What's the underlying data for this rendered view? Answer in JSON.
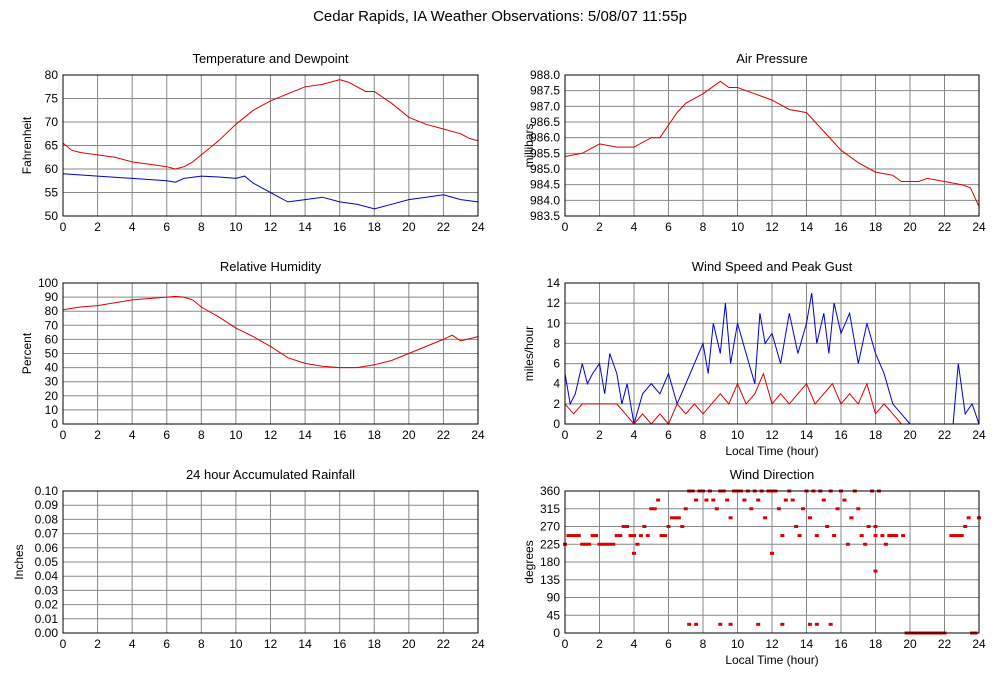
{
  "page": {
    "title": "Cedar Rapids, IA Weather Observations: 5/08/07 11:55p"
  },
  "colors": {
    "red": "#dd0000",
    "blue": "#0000cc",
    "grid": "#888888"
  },
  "chart_data": [
    {
      "id": "temp",
      "type": "line",
      "title": "Temperature and Dewpoint",
      "xlabel": "",
      "ylabel": "Fahrenheit",
      "xlim": [
        0,
        24
      ],
      "ylim": [
        50,
        80
      ],
      "xticks": [
        0,
        2,
        4,
        6,
        8,
        10,
        12,
        14,
        16,
        18,
        20,
        22,
        24
      ],
      "yticks": [
        50,
        55,
        60,
        65,
        70,
        75,
        80
      ],
      "grid": true,
      "series": [
        {
          "color": "#dd0000",
          "x": [
            0,
            0.5,
            1,
            2,
            3,
            4,
            5,
            6,
            6.5,
            7,
            7.5,
            8,
            9,
            10,
            11,
            12,
            13,
            14,
            15,
            16,
            16.5,
            17,
            17.5,
            18,
            19,
            20,
            21,
            22,
            23,
            23.5,
            24
          ],
          "y": [
            65.5,
            64,
            63.5,
            63,
            62.5,
            61.5,
            61,
            60.5,
            60,
            60.5,
            61.5,
            63,
            66,
            69.5,
            72.5,
            74.5,
            76,
            77.5,
            78,
            79,
            78.5,
            77.5,
            76.5,
            76.5,
            74,
            71,
            69.5,
            68.5,
            67.5,
            66.5,
            66
          ]
        },
        {
          "color": "#0000cc",
          "x": [
            0,
            2,
            4,
            6,
            6.5,
            7,
            8,
            9,
            10,
            10.5,
            11,
            11.5,
            12,
            12.5,
            13,
            14,
            15,
            16,
            17,
            18,
            19,
            20,
            21,
            22,
            23,
            24
          ],
          "y": [
            59,
            58.5,
            58,
            57.5,
            57.2,
            58,
            58.5,
            58.3,
            58,
            58.5,
            57,
            56,
            55,
            54,
            53,
            53.5,
            54,
            53,
            52.5,
            51.5,
            52.5,
            53.5,
            54,
            54.5,
            53.5,
            53
          ]
        }
      ]
    },
    {
      "id": "pressure",
      "type": "line",
      "title": "Air Pressure",
      "xlabel": "",
      "ylabel": "millibars",
      "xlim": [
        0,
        24
      ],
      "ylim": [
        983.5,
        988.0
      ],
      "xticks": [
        0,
        2,
        4,
        6,
        8,
        10,
        12,
        14,
        16,
        18,
        20,
        22,
        24
      ],
      "yticks": [
        "983.5",
        "984.0",
        "984.5",
        "985.0",
        "985.5",
        "986.0",
        "986.5",
        "987.0",
        "987.5",
        "988.0"
      ],
      "grid": true,
      "series": [
        {
          "color": "#dd0000",
          "x": [
            0,
            1,
            2,
            3,
            4,
            5,
            5.5,
            6,
            6.5,
            7,
            8,
            9,
            9.5,
            10,
            10.5,
            11,
            12,
            13,
            14,
            14.5,
            15,
            16,
            17,
            18,
            19,
            19.5,
            20,
            20.5,
            21,
            22,
            23,
            23.5,
            24
          ],
          "y": [
            985.4,
            985.5,
            985.8,
            985.7,
            985.7,
            986.0,
            986.0,
            986.4,
            986.8,
            987.1,
            987.4,
            987.8,
            987.6,
            987.6,
            987.5,
            987.4,
            987.2,
            986.9,
            986.8,
            986.5,
            986.2,
            985.6,
            985.2,
            984.9,
            984.8,
            984.6,
            984.6,
            984.6,
            984.7,
            984.6,
            984.5,
            984.4,
            983.8
          ]
        }
      ]
    },
    {
      "id": "humidity",
      "type": "line",
      "title": "Relative Humidity",
      "xlabel": "",
      "ylabel": "Percent",
      "xlim": [
        0,
        24
      ],
      "ylim": [
        0,
        100
      ],
      "xticks": [
        0,
        2,
        4,
        6,
        8,
        10,
        12,
        14,
        16,
        18,
        20,
        22,
        24
      ],
      "yticks": [
        0,
        10,
        20,
        30,
        40,
        50,
        60,
        70,
        80,
        90,
        100
      ],
      "grid": true,
      "series": [
        {
          "color": "#dd0000",
          "x": [
            0,
            1,
            2,
            3,
            4,
            5,
            6,
            6.5,
            7,
            7.5,
            8,
            9,
            10,
            11,
            12,
            13,
            14,
            15,
            16,
            17,
            18,
            19,
            20,
            21,
            22,
            22.5,
            23,
            24
          ],
          "y": [
            81,
            83,
            84,
            86,
            88,
            89,
            90,
            90.5,
            90,
            88,
            83,
            76,
            68,
            62,
            55,
            47,
            43,
            41,
            40,
            40,
            42,
            45,
            50,
            55,
            60,
            63,
            59,
            62
          ]
        }
      ]
    },
    {
      "id": "wind",
      "type": "line",
      "title": "Wind Speed and Peak Gust",
      "xlabel": "Local Time (hour)",
      "ylabel": "miles/hour",
      "xlim": [
        0,
        24
      ],
      "ylim": [
        0,
        14
      ],
      "xticks": [
        0,
        2,
        4,
        6,
        8,
        10,
        12,
        14,
        16,
        18,
        20,
        22,
        24
      ],
      "yticks": [
        0,
        2,
        4,
        6,
        8,
        10,
        12,
        14
      ],
      "grid": true,
      "series": [
        {
          "color": "#0000cc",
          "x": [
            0,
            0.3,
            0.6,
            1,
            1.3,
            1.6,
            2,
            2.3,
            2.6,
            3,
            3.3,
            3.6,
            4,
            4.5,
            5,
            5.5,
            6,
            6.5,
            7,
            7.5,
            8,
            8.3,
            8.6,
            9,
            9.3,
            9.6,
            10,
            10.5,
            11,
            11.3,
            11.6,
            12,
            12.5,
            13,
            13.5,
            14,
            14.3,
            14.6,
            15,
            15.3,
            15.6,
            16,
            16.5,
            17,
            17.5,
            18,
            18.5,
            19,
            19.5,
            20,
            20.5,
            21,
            22,
            22.5,
            22.8,
            23.2,
            23.6,
            24
          ],
          "y": [
            5,
            2,
            3,
            6,
            4,
            5,
            6,
            3,
            7,
            5,
            2,
            4,
            0,
            3,
            4,
            3,
            5,
            2,
            4,
            6,
            8,
            5,
            10,
            7,
            12,
            6,
            10,
            7,
            4,
            11,
            8,
            9,
            6,
            11,
            7,
            10,
            13,
            8,
            11,
            7,
            12,
            9,
            11,
            6,
            10,
            7,
            5,
            2,
            1,
            0,
            0,
            0,
            0,
            0,
            6,
            1,
            2,
            0
          ]
        },
        {
          "color": "#dd0000",
          "x": [
            0,
            0.5,
            1,
            2,
            3,
            3.5,
            4,
            4.5,
            5,
            5.5,
            6,
            6.5,
            7,
            7.5,
            8,
            8.5,
            9,
            9.5,
            10,
            10.5,
            11,
            11.5,
            12,
            12.5,
            13,
            13.5,
            14,
            14.5,
            15,
            15.5,
            16,
            16.5,
            17,
            17.5,
            18,
            18.5,
            19,
            19.5,
            20,
            24
          ],
          "y": [
            2,
            1,
            2,
            2,
            2,
            1,
            0,
            1,
            0,
            1,
            0,
            2,
            1,
            2,
            1,
            2,
            3,
            2,
            4,
            2,
            3,
            5,
            2,
            3,
            2,
            3,
            4,
            2,
            3,
            4,
            2,
            3,
            2,
            4,
            1,
            2,
            1,
            0,
            0,
            0
          ]
        }
      ]
    },
    {
      "id": "rain",
      "type": "line",
      "title": "24 hour Accumulated Rainfall",
      "xlabel": "",
      "ylabel": "Inches",
      "xlim": [
        0,
        24
      ],
      "ylim": [
        0,
        0.1
      ],
      "xticks": [
        0,
        2,
        4,
        6,
        8,
        10,
        12,
        14,
        16,
        18,
        20,
        22,
        24
      ],
      "yticks": [
        "0.00",
        "0.01",
        "0.02",
        "0.03",
        "0.04",
        "0.05",
        "0.06",
        "0.07",
        "0.08",
        "0.09",
        "0.10"
      ],
      "grid": true,
      "series": [
        {
          "color": "#dd0000",
          "x": [
            0,
            24
          ],
          "y": [
            0,
            0
          ]
        }
      ]
    },
    {
      "id": "direction",
      "type": "scatter",
      "title": "Wind Direction",
      "xlabel": "Local Time (hour)",
      "ylabel": "degrees",
      "xlim": [
        0,
        24
      ],
      "ylim": [
        0,
        360
      ],
      "xticks": [
        0,
        2,
        4,
        6,
        8,
        10,
        12,
        14,
        16,
        18,
        20,
        22,
        24
      ],
      "yticks": [
        0,
        45,
        90,
        135,
        180,
        225,
        270,
        315,
        360
      ],
      "grid": true,
      "series": [
        {
          "color": "#dd0000",
          "x": [
            0,
            0.2,
            0.4,
            0.6,
            0.8,
            1.0,
            1.2,
            1.4,
            1.6,
            1.8,
            2.0,
            2.2,
            2.4,
            2.6,
            2.8,
            3.0,
            3.2,
            3.4,
            3.6,
            3.8,
            4.0,
            4.2,
            4.4,
            4.6,
            4.8,
            5.0,
            5.2,
            5.4,
            5.6,
            5.8,
            6.0,
            6.2,
            6.4,
            6.6,
            6.8,
            7.0,
            7.2,
            7.4,
            7.6,
            7.8,
            8.0,
            8.2,
            8.4,
            8.6,
            8.8,
            9.0,
            9.2,
            9.4,
            9.6,
            9.8,
            10.0,
            10.2,
            10.4,
            10.6,
            10.8,
            11.0,
            11.2,
            11.4,
            11.6,
            11.8,
            12.0,
            12.2,
            12.4,
            12.6,
            12.8,
            13.0,
            13.2,
            13.4,
            13.6,
            13.8,
            14.0,
            14.2,
            14.4,
            14.6,
            14.8,
            15.0,
            15.2,
            15.4,
            15.6,
            15.8,
            16.0,
            16.2,
            16.4,
            16.6,
            16.8,
            17.0,
            17.2,
            17.4,
            17.6,
            17.8,
            18.0,
            18.2,
            18.4,
            18.6,
            18.8,
            19.0,
            19.2,
            19.6,
            19.8,
            20.0,
            20.2,
            20.4,
            20.6,
            20.8,
            21.0,
            21.2,
            21.4,
            21.6,
            21.8,
            22.0,
            22.4,
            22.6,
            22.8,
            23.0,
            23.2,
            23.4,
            23.6,
            23.8,
            24.0,
            7.2,
            7.6,
            9.0,
            9.6,
            11.2,
            12.6,
            14.2,
            14.6,
            15.4,
            18.0,
            4.0,
            12.0,
            18.0
          ],
          "y": [
            225,
            247,
            247,
            247,
            247,
            225,
            225,
            225,
            247,
            247,
            225,
            225,
            225,
            225,
            225,
            247,
            247,
            270,
            270,
            247,
            247,
            225,
            247,
            270,
            247,
            315,
            315,
            337,
            247,
            247,
            270,
            292,
            292,
            292,
            270,
            315,
            360,
            360,
            337,
            360,
            360,
            337,
            360,
            337,
            315,
            360,
            360,
            337,
            292,
            360,
            360,
            360,
            337,
            360,
            315,
            360,
            337,
            360,
            292,
            360,
            360,
            360,
            315,
            247,
            337,
            360,
            337,
            270,
            247,
            315,
            360,
            292,
            360,
            247,
            360,
            337,
            270,
            360,
            247,
            315,
            360,
            337,
            225,
            292,
            360,
            315,
            247,
            225,
            270,
            360,
            247,
            360,
            247,
            225,
            247,
            247,
            247,
            247,
            0,
            0,
            0,
            0,
            0,
            0,
            0,
            0,
            0,
            0,
            0,
            0,
            247,
            247,
            247,
            247,
            270,
            292,
            0,
            0,
            292,
            22,
            22,
            22,
            22,
            22,
            22,
            22,
            22,
            22,
            270,
            202,
            202,
            157
          ]
        }
      ]
    }
  ]
}
